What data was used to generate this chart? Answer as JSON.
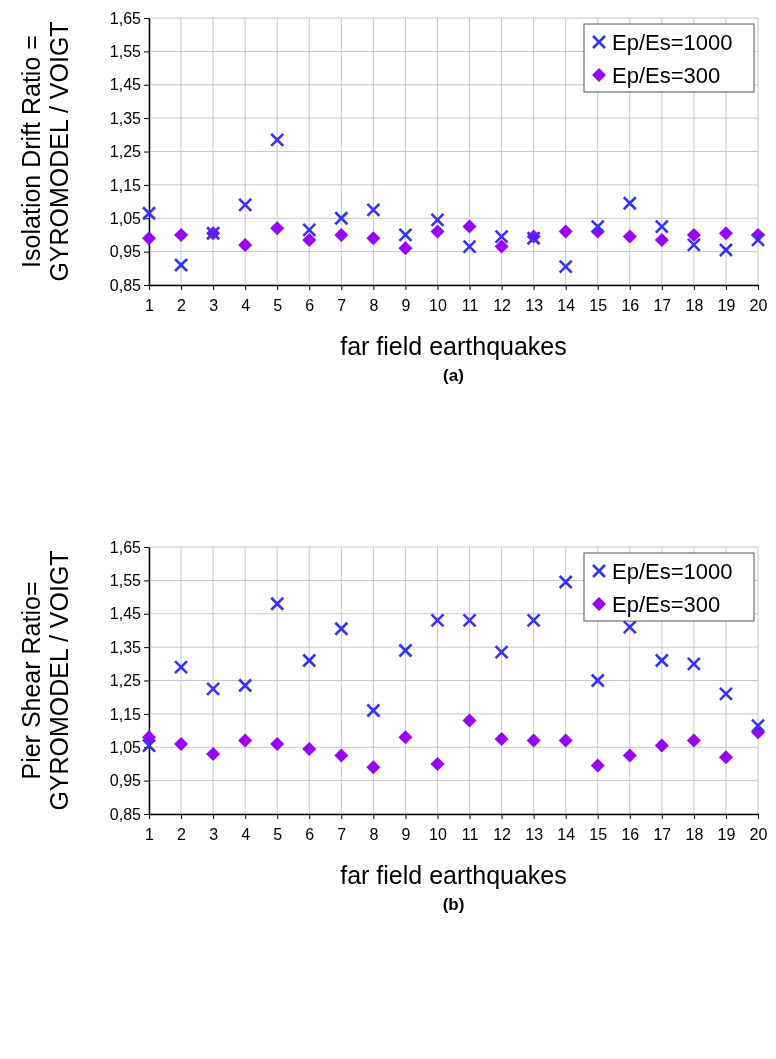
{
  "chart_data": [
    {
      "type": "scatter",
      "ylabel": "Isolation Drift Ratio =\nGYROMODEL / VOIGT",
      "xlabel": "far field earthquakes",
      "annotations": [
        "(a)"
      ],
      "x": [
        1,
        2,
        3,
        4,
        5,
        6,
        7,
        8,
        9,
        10,
        11,
        12,
        13,
        14,
        15,
        16,
        17,
        18,
        19,
        20
      ],
      "series": [
        {
          "name": "Ep/Es=1000",
          "color": "#3333ff",
          "marker": "cross",
          "values": [
            1.065,
            0.91,
            1.005,
            1.09,
            1.285,
            1.015,
            1.05,
            1.075,
            1.0,
            1.045,
            0.965,
            0.995,
            0.99,
            0.905,
            1.025,
            1.095,
            1.025,
            0.97,
            0.955,
            0.985
          ]
        },
        {
          "name": "Ep/Es=300",
          "color": "#9900ff",
          "marker": "diamond",
          "values": [
            0.99,
            1.0,
            1.005,
            0.97,
            1.02,
            0.985,
            1.0,
            0.99,
            0.96,
            1.01,
            1.025,
            0.965,
            0.995,
            1.01,
            1.01,
            0.995,
            0.985,
            1.0,
            1.005,
            1.0
          ]
        }
      ],
      "xlim": [
        1,
        20
      ],
      "xticks": [
        1,
        2,
        3,
        4,
        5,
        6,
        7,
        8,
        9,
        10,
        11,
        12,
        13,
        14,
        15,
        16,
        17,
        18,
        19,
        20
      ],
      "ylim": [
        0.85,
        1.65
      ],
      "yticks": [
        {
          "value": 0.85,
          "label": "0,85"
        },
        {
          "value": 0.95,
          "label": "0,95"
        },
        {
          "value": 1.05,
          "label": "1,05"
        },
        {
          "value": 1.15,
          "label": "1,15"
        },
        {
          "value": 1.25,
          "label": "1,25"
        },
        {
          "value": 1.35,
          "label": "1,35"
        },
        {
          "value": 1.45,
          "label": "1,45"
        },
        {
          "value": 1.55,
          "label": "1,55"
        },
        {
          "value": 1.65,
          "label": "1,65"
        }
      ],
      "grid": true,
      "legend": "top right"
    },
    {
      "type": "scatter",
      "ylabel": "Pier Shear Ratio=\nGYROMODEL / VOIGT",
      "xlabel": "far field earthquakes",
      "annotations": [
        "(b)"
      ],
      "x": [
        1,
        2,
        3,
        4,
        5,
        6,
        7,
        8,
        9,
        10,
        11,
        12,
        13,
        14,
        15,
        16,
        17,
        18,
        19,
        20
      ],
      "series": [
        {
          "name": "Ep/Es=1000",
          "color": "#3333ff",
          "marker": "cross",
          "values": [
            1.055,
            1.29,
            1.225,
            1.235,
            1.48,
            1.31,
            1.405,
            1.16,
            1.34,
            1.43,
            1.43,
            1.335,
            1.43,
            1.545,
            1.25,
            1.41,
            1.31,
            1.3,
            1.21,
            1.115
          ]
        },
        {
          "name": "Ep/Es=300",
          "color": "#9900ff",
          "marker": "diamond",
          "values": [
            1.08,
            1.06,
            1.03,
            1.07,
            1.06,
            1.045,
            1.025,
            0.99,
            1.08,
            1.0,
            1.13,
            1.075,
            1.07,
            1.07,
            0.995,
            1.025,
            1.055,
            1.07,
            1.02,
            1.095
          ]
        }
      ],
      "xlim": [
        1,
        20
      ],
      "xticks": [
        1,
        2,
        3,
        4,
        5,
        6,
        7,
        8,
        9,
        10,
        11,
        12,
        13,
        14,
        15,
        16,
        17,
        18,
        19,
        20
      ],
      "ylim": [
        0.85,
        1.65
      ],
      "yticks": [
        {
          "value": 0.85,
          "label": "0,85"
        },
        {
          "value": 0.95,
          "label": "0,95"
        },
        {
          "value": 1.05,
          "label": "1,05"
        },
        {
          "value": 1.15,
          "label": "1,15"
        },
        {
          "value": 1.25,
          "label": "1,25"
        },
        {
          "value": 1.35,
          "label": "1,35"
        },
        {
          "value": 1.45,
          "label": "1,45"
        },
        {
          "value": 1.55,
          "label": "1,55"
        },
        {
          "value": 1.65,
          "label": "1,65"
        }
      ],
      "grid": true,
      "legend": "top right"
    }
  ]
}
